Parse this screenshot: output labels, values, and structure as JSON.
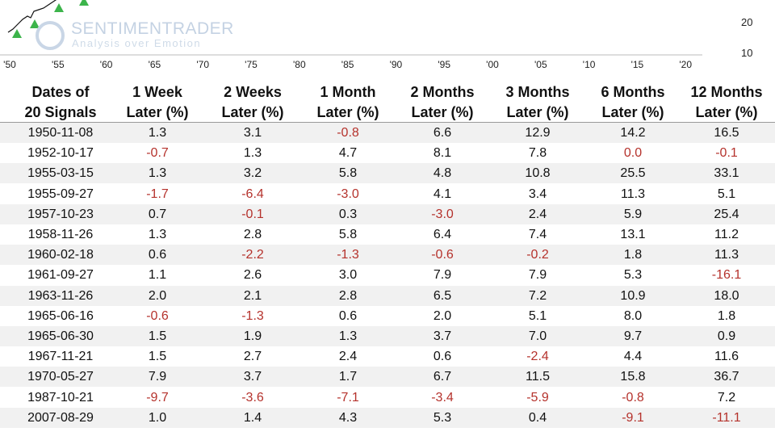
{
  "chart_fragment": {
    "watermark": "SENTIMENTRADER",
    "watermark_tagline": "Analysis over Emotion",
    "x_labels": [
      "'50",
      "'55",
      "'60",
      "'65",
      "'70",
      "'75",
      "'80",
      "'85",
      "'90",
      "'95",
      "'00",
      "'05",
      "'10",
      "'15",
      "'20"
    ],
    "y_labels": [
      "20",
      "10"
    ]
  },
  "table": {
    "negative_color": "#b5322c",
    "header": [
      [
        "Dates of",
        "20 Signals"
      ],
      [
        "1 Week",
        "Later (%)"
      ],
      [
        "2 Weeks",
        "Later (%)"
      ],
      [
        "1 Month",
        "Later (%)"
      ],
      [
        "2 Months",
        "Later (%)"
      ],
      [
        "3 Months",
        "Later (%)"
      ],
      [
        "6 Months",
        "Later (%)"
      ],
      [
        "12 Months",
        "Later (%)"
      ]
    ],
    "rows": [
      [
        "1950-11-08",
        "1.3",
        "3.1",
        "-0.8",
        "6.6",
        "12.9",
        "14.2",
        "16.5"
      ],
      [
        "1952-10-17",
        "-0.7",
        "1.3",
        "4.7",
        "8.1",
        "7.8",
        {
          "text": "0.0",
          "color": "#b5322c"
        },
        "-0.1"
      ],
      [
        "1955-03-15",
        "1.3",
        "3.2",
        "5.8",
        "4.8",
        "10.8",
        "25.5",
        "33.1"
      ],
      [
        "1955-09-27",
        "-1.7",
        "-6.4",
        "-3.0",
        "4.1",
        "3.4",
        "11.3",
        "5.1"
      ],
      [
        "1957-10-23",
        "0.7",
        "-0.1",
        "0.3",
        "-3.0",
        "2.4",
        "5.9",
        "25.4"
      ],
      [
        "1958-11-26",
        "1.3",
        "2.8",
        "5.8",
        "6.4",
        "7.4",
        "13.1",
        "11.2"
      ],
      [
        "1960-02-18",
        "0.6",
        "-2.2",
        "-1.3",
        "-0.6",
        "-0.2",
        "1.8",
        "11.3"
      ],
      [
        "1961-09-27",
        "1.1",
        "2.6",
        "3.0",
        "7.9",
        "7.9",
        "5.3",
        "-16.1"
      ],
      [
        "1963-11-26",
        "2.0",
        "2.1",
        "2.8",
        "6.5",
        "7.2",
        "10.9",
        "18.0"
      ],
      [
        "1965-06-16",
        "-0.6",
        "-1.3",
        "0.6",
        "2.0",
        "5.1",
        "8.0",
        "1.8"
      ],
      [
        "1965-06-30",
        "1.5",
        "1.9",
        "1.3",
        "3.7",
        "7.0",
        "9.7",
        "0.9"
      ],
      [
        "1967-11-21",
        "1.5",
        "2.7",
        "2.4",
        "0.6",
        "-2.4",
        "4.4",
        "11.6"
      ],
      [
        "1970-05-27",
        "7.9",
        "3.7",
        "1.7",
        "6.7",
        "11.5",
        "15.8",
        "36.7"
      ],
      [
        "1987-10-21",
        "-9.7",
        "-3.6",
        "-7.1",
        "-3.4",
        "-5.9",
        "-0.8",
        "7.2"
      ],
      [
        "2007-08-29",
        "1.0",
        "1.4",
        "4.3",
        "5.3",
        "0.4",
        "-9.1",
        "-11.1"
      ]
    ]
  }
}
